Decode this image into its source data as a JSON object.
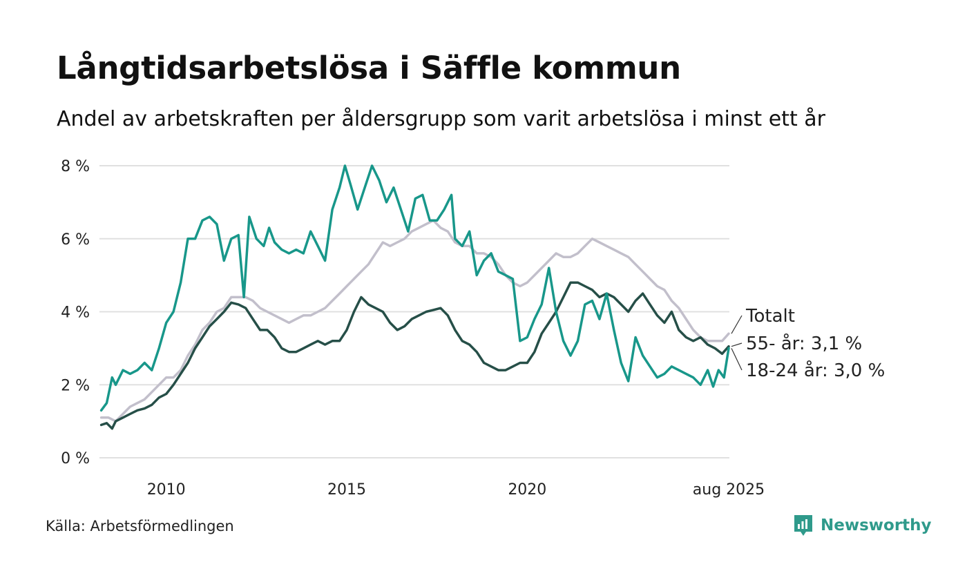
{
  "title": "Långtidsarbetslösa i Säffle kommun",
  "subtitle": "Andel av arbetskraften per åldersgrupp som varit arbetslösa i minst ett år",
  "source": "Källa: Arbetsförmedlingen",
  "brand": "Newsworthy",
  "colors": {
    "series_55": "#264f48",
    "series_18_24": "#18978a",
    "series_total": "#c2bfcb",
    "grid": "#e0e0e0",
    "brand": "#2f9a8b"
  },
  "chart_data": {
    "type": "line",
    "ylim": [
      0,
      8
    ],
    "xlim": [
      2008.15,
      2025.6
    ],
    "yticks": [
      {
        "value": 0,
        "label": "0 %"
      },
      {
        "value": 2,
        "label": "2 %"
      },
      {
        "value": 4,
        "label": "4 %"
      },
      {
        "value": 6,
        "label": "6 %"
      },
      {
        "value": 8,
        "label": "8 %"
      }
    ],
    "xticks": [
      {
        "value": 2010,
        "label": "2010"
      },
      {
        "value": 2015,
        "label": "2015"
      },
      {
        "value": 2020,
        "label": "2020"
      },
      {
        "value": 2025.58,
        "label": "aug 2025"
      }
    ],
    "grid": true,
    "series": [
      {
        "key": "total",
        "label": "Totalt",
        "points": [
          [
            2008.2,
            1.1
          ],
          [
            2008.4,
            1.1
          ],
          [
            2008.6,
            1.0
          ],
          [
            2008.8,
            1.2
          ],
          [
            2009.0,
            1.4
          ],
          [
            2009.2,
            1.5
          ],
          [
            2009.4,
            1.6
          ],
          [
            2009.6,
            1.8
          ],
          [
            2009.8,
            2.0
          ],
          [
            2010.0,
            2.2
          ],
          [
            2010.2,
            2.2
          ],
          [
            2010.4,
            2.4
          ],
          [
            2010.6,
            2.8
          ],
          [
            2010.8,
            3.1
          ],
          [
            2011.0,
            3.5
          ],
          [
            2011.2,
            3.7
          ],
          [
            2011.4,
            4.0
          ],
          [
            2011.6,
            4.1
          ],
          [
            2011.8,
            4.4
          ],
          [
            2012.0,
            4.4
          ],
          [
            2012.2,
            4.4
          ],
          [
            2012.4,
            4.3
          ],
          [
            2012.6,
            4.1
          ],
          [
            2012.8,
            4.0
          ],
          [
            2013.0,
            3.9
          ],
          [
            2013.2,
            3.8
          ],
          [
            2013.4,
            3.7
          ],
          [
            2013.6,
            3.8
          ],
          [
            2013.8,
            3.9
          ],
          [
            2014.0,
            3.9
          ],
          [
            2014.2,
            4.0
          ],
          [
            2014.4,
            4.1
          ],
          [
            2014.6,
            4.3
          ],
          [
            2014.8,
            4.5
          ],
          [
            2015.0,
            4.7
          ],
          [
            2015.2,
            4.9
          ],
          [
            2015.4,
            5.1
          ],
          [
            2015.6,
            5.3
          ],
          [
            2015.8,
            5.6
          ],
          [
            2016.0,
            5.9
          ],
          [
            2016.2,
            5.8
          ],
          [
            2016.4,
            5.9
          ],
          [
            2016.6,
            6.0
          ],
          [
            2016.8,
            6.2
          ],
          [
            2017.0,
            6.3
          ],
          [
            2017.2,
            6.4
          ],
          [
            2017.4,
            6.5
          ],
          [
            2017.6,
            6.3
          ],
          [
            2017.8,
            6.2
          ],
          [
            2018.0,
            5.9
          ],
          [
            2018.2,
            5.8
          ],
          [
            2018.4,
            5.8
          ],
          [
            2018.6,
            5.6
          ],
          [
            2018.8,
            5.6
          ],
          [
            2019.0,
            5.5
          ],
          [
            2019.2,
            5.3
          ],
          [
            2019.4,
            5.0
          ],
          [
            2019.6,
            4.8
          ],
          [
            2019.8,
            4.7
          ],
          [
            2020.0,
            4.8
          ],
          [
            2020.2,
            5.0
          ],
          [
            2020.4,
            5.2
          ],
          [
            2020.6,
            5.4
          ],
          [
            2020.8,
            5.6
          ],
          [
            2021.0,
            5.5
          ],
          [
            2021.2,
            5.5
          ],
          [
            2021.4,
            5.6
          ],
          [
            2021.6,
            5.8
          ],
          [
            2021.8,
            6.0
          ],
          [
            2022.0,
            5.9
          ],
          [
            2022.2,
            5.8
          ],
          [
            2022.4,
            5.7
          ],
          [
            2022.6,
            5.6
          ],
          [
            2022.8,
            5.5
          ],
          [
            2023.0,
            5.3
          ],
          [
            2023.2,
            5.1
          ],
          [
            2023.4,
            4.9
          ],
          [
            2023.6,
            4.7
          ],
          [
            2023.8,
            4.6
          ],
          [
            2024.0,
            4.3
          ],
          [
            2024.2,
            4.1
          ],
          [
            2024.4,
            3.8
          ],
          [
            2024.6,
            3.5
          ],
          [
            2024.8,
            3.3
          ],
          [
            2025.0,
            3.2
          ],
          [
            2025.2,
            3.2
          ],
          [
            2025.4,
            3.2
          ],
          [
            2025.58,
            3.4
          ]
        ]
      },
      {
        "key": "55",
        "label": "55- år: 3,1 %",
        "points": [
          [
            2008.2,
            0.9
          ],
          [
            2008.35,
            0.95
          ],
          [
            2008.5,
            0.8
          ],
          [
            2008.6,
            1.0
          ],
          [
            2008.8,
            1.1
          ],
          [
            2009.0,
            1.2
          ],
          [
            2009.2,
            1.3
          ],
          [
            2009.4,
            1.35
          ],
          [
            2009.6,
            1.45
          ],
          [
            2009.8,
            1.65
          ],
          [
            2010.0,
            1.75
          ],
          [
            2010.2,
            2.0
          ],
          [
            2010.4,
            2.3
          ],
          [
            2010.6,
            2.6
          ],
          [
            2010.8,
            3.0
          ],
          [
            2011.0,
            3.3
          ],
          [
            2011.2,
            3.6
          ],
          [
            2011.4,
            3.8
          ],
          [
            2011.6,
            4.0
          ],
          [
            2011.8,
            4.25
          ],
          [
            2012.0,
            4.2
          ],
          [
            2012.2,
            4.1
          ],
          [
            2012.4,
            3.8
          ],
          [
            2012.6,
            3.5
          ],
          [
            2012.8,
            3.5
          ],
          [
            2013.0,
            3.3
          ],
          [
            2013.2,
            3.0
          ],
          [
            2013.4,
            2.9
          ],
          [
            2013.6,
            2.9
          ],
          [
            2013.8,
            3.0
          ],
          [
            2014.0,
            3.1
          ],
          [
            2014.2,
            3.2
          ],
          [
            2014.4,
            3.1
          ],
          [
            2014.6,
            3.2
          ],
          [
            2014.8,
            3.2
          ],
          [
            2015.0,
            3.5
          ],
          [
            2015.2,
            4.0
          ],
          [
            2015.4,
            4.4
          ],
          [
            2015.6,
            4.2
          ],
          [
            2015.8,
            4.1
          ],
          [
            2016.0,
            4.0
          ],
          [
            2016.2,
            3.7
          ],
          [
            2016.4,
            3.5
          ],
          [
            2016.6,
            3.6
          ],
          [
            2016.8,
            3.8
          ],
          [
            2017.0,
            3.9
          ],
          [
            2017.2,
            4.0
          ],
          [
            2017.4,
            4.05
          ],
          [
            2017.6,
            4.1
          ],
          [
            2017.8,
            3.9
          ],
          [
            2018.0,
            3.5
          ],
          [
            2018.2,
            3.2
          ],
          [
            2018.4,
            3.1
          ],
          [
            2018.6,
            2.9
          ],
          [
            2018.8,
            2.6
          ],
          [
            2019.0,
            2.5
          ],
          [
            2019.2,
            2.4
          ],
          [
            2019.4,
            2.4
          ],
          [
            2019.6,
            2.5
          ],
          [
            2019.8,
            2.6
          ],
          [
            2020.0,
            2.6
          ],
          [
            2020.2,
            2.9
          ],
          [
            2020.4,
            3.4
          ],
          [
            2020.6,
            3.7
          ],
          [
            2020.8,
            4.0
          ],
          [
            2021.0,
            4.4
          ],
          [
            2021.2,
            4.8
          ],
          [
            2021.4,
            4.8
          ],
          [
            2021.6,
            4.7
          ],
          [
            2021.8,
            4.6
          ],
          [
            2022.0,
            4.4
          ],
          [
            2022.2,
            4.5
          ],
          [
            2022.4,
            4.4
          ],
          [
            2022.6,
            4.2
          ],
          [
            2022.8,
            4.0
          ],
          [
            2023.0,
            4.3
          ],
          [
            2023.2,
            4.5
          ],
          [
            2023.4,
            4.2
          ],
          [
            2023.6,
            3.9
          ],
          [
            2023.8,
            3.7
          ],
          [
            2024.0,
            4.0
          ],
          [
            2024.2,
            3.5
          ],
          [
            2024.4,
            3.3
          ],
          [
            2024.6,
            3.2
          ],
          [
            2024.8,
            3.3
          ],
          [
            2025.0,
            3.1
          ],
          [
            2025.2,
            3.0
          ],
          [
            2025.4,
            2.85
          ],
          [
            2025.58,
            3.05
          ]
        ]
      },
      {
        "key": "18_24",
        "label": "18-24 år: 3,0 %",
        "points": [
          [
            2008.2,
            1.3
          ],
          [
            2008.35,
            1.5
          ],
          [
            2008.5,
            2.2
          ],
          [
            2008.6,
            2.0
          ],
          [
            2008.8,
            2.4
          ],
          [
            2009.0,
            2.3
          ],
          [
            2009.2,
            2.4
          ],
          [
            2009.4,
            2.6
          ],
          [
            2009.6,
            2.4
          ],
          [
            2009.8,
            3.0
          ],
          [
            2010.0,
            3.7
          ],
          [
            2010.2,
            4.0
          ],
          [
            2010.4,
            4.8
          ],
          [
            2010.6,
            6.0
          ],
          [
            2010.8,
            6.0
          ],
          [
            2011.0,
            6.5
          ],
          [
            2011.2,
            6.6
          ],
          [
            2011.4,
            6.4
          ],
          [
            2011.6,
            5.4
          ],
          [
            2011.8,
            6.0
          ],
          [
            2012.0,
            6.1
          ],
          [
            2012.15,
            4.4
          ],
          [
            2012.3,
            6.6
          ],
          [
            2012.5,
            6.0
          ],
          [
            2012.7,
            5.8
          ],
          [
            2012.85,
            6.3
          ],
          [
            2013.0,
            5.9
          ],
          [
            2013.2,
            5.7
          ],
          [
            2013.4,
            5.6
          ],
          [
            2013.6,
            5.7
          ],
          [
            2013.8,
            5.6
          ],
          [
            2014.0,
            6.2
          ],
          [
            2014.2,
            5.8
          ],
          [
            2014.4,
            5.4
          ],
          [
            2014.6,
            6.8
          ],
          [
            2014.8,
            7.4
          ],
          [
            2014.95,
            8.0
          ],
          [
            2015.1,
            7.5
          ],
          [
            2015.3,
            6.8
          ],
          [
            2015.5,
            7.4
          ],
          [
            2015.7,
            8.0
          ],
          [
            2015.9,
            7.6
          ],
          [
            2016.1,
            7.0
          ],
          [
            2016.3,
            7.4
          ],
          [
            2016.5,
            6.8
          ],
          [
            2016.7,
            6.2
          ],
          [
            2016.9,
            7.1
          ],
          [
            2017.1,
            7.2
          ],
          [
            2017.3,
            6.5
          ],
          [
            2017.5,
            6.5
          ],
          [
            2017.7,
            6.8
          ],
          [
            2017.9,
            7.2
          ],
          [
            2018.0,
            6.0
          ],
          [
            2018.2,
            5.8
          ],
          [
            2018.4,
            6.2
          ],
          [
            2018.6,
            5.0
          ],
          [
            2018.8,
            5.4
          ],
          [
            2019.0,
            5.6
          ],
          [
            2019.2,
            5.1
          ],
          [
            2019.4,
            5.0
          ],
          [
            2019.6,
            4.9
          ],
          [
            2019.8,
            3.2
          ],
          [
            2020.0,
            3.3
          ],
          [
            2020.2,
            3.8
          ],
          [
            2020.4,
            4.2
          ],
          [
            2020.6,
            5.2
          ],
          [
            2020.8,
            4.0
          ],
          [
            2021.0,
            3.2
          ],
          [
            2021.2,
            2.8
          ],
          [
            2021.4,
            3.2
          ],
          [
            2021.6,
            4.2
          ],
          [
            2021.8,
            4.3
          ],
          [
            2022.0,
            3.8
          ],
          [
            2022.2,
            4.5
          ],
          [
            2022.4,
            3.5
          ],
          [
            2022.6,
            2.6
          ],
          [
            2022.8,
            2.1
          ],
          [
            2023.0,
            3.3
          ],
          [
            2023.2,
            2.8
          ],
          [
            2023.4,
            2.5
          ],
          [
            2023.6,
            2.2
          ],
          [
            2023.8,
            2.3
          ],
          [
            2024.0,
            2.5
          ],
          [
            2024.2,
            2.4
          ],
          [
            2024.4,
            2.3
          ],
          [
            2024.6,
            2.2
          ],
          [
            2024.8,
            2.0
          ],
          [
            2025.0,
            2.4
          ],
          [
            2025.15,
            1.95
          ],
          [
            2025.3,
            2.4
          ],
          [
            2025.45,
            2.2
          ],
          [
            2025.58,
            3.0
          ]
        ]
      }
    ]
  }
}
